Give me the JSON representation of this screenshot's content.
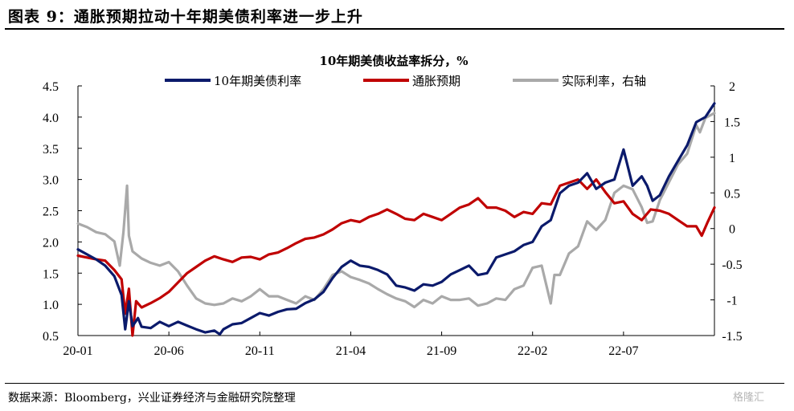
{
  "header": {
    "figure_title": "图表 9：通胀预期拉动十年期美债利率进一步上升"
  },
  "footer": {
    "source": "数据来源：Bloomberg，兴业证券经济与金融研究院整理",
    "watermark": "格隆汇"
  },
  "chart_data": {
    "type": "line",
    "title": "10年期美债收益率拆分，%",
    "x_tick_labels": [
      "20-01",
      "20-06",
      "20-11",
      "21-04",
      "21-09",
      "22-02",
      "22-07"
    ],
    "x_tick_months": [
      0,
      5,
      10,
      15,
      20,
      25,
      30
    ],
    "x_range_months": [
      0,
      35
    ],
    "y_left": {
      "range": [
        0.5,
        4.5
      ],
      "ticks": [
        0.5,
        1.0,
        1.5,
        2.0,
        2.5,
        3.0,
        3.5,
        4.0,
        4.5
      ],
      "tick_labels": [
        "0.5",
        "1.0",
        "1.5",
        "2.0",
        "2.5",
        "3.0",
        "3.5",
        "4.0",
        "4.5"
      ]
    },
    "y_right": {
      "range": [
        -1.5,
        2
      ],
      "ticks": [
        -1.5,
        -1,
        -0.5,
        0,
        0.5,
        1,
        1.5,
        2
      ],
      "tick_labels": [
        "-1.5",
        "-1",
        "-0.5",
        "0",
        "0.5",
        "1",
        "1.5",
        "2"
      ]
    },
    "legend_position": "top",
    "grid": false,
    "series": [
      {
        "name": "10年期美债利率",
        "axis": "left",
        "color": "#0b1a6b",
        "points": [
          [
            0,
            1.88
          ],
          [
            0.5,
            1.8
          ],
          [
            1,
            1.72
          ],
          [
            1.5,
            1.62
          ],
          [
            2,
            1.45
          ],
          [
            2.4,
            1.15
          ],
          [
            2.6,
            0.6
          ],
          [
            2.8,
            1.05
          ],
          [
            3,
            0.65
          ],
          [
            3.3,
            0.78
          ],
          [
            3.5,
            0.64
          ],
          [
            4,
            0.62
          ],
          [
            4.5,
            0.72
          ],
          [
            5,
            0.65
          ],
          [
            5.5,
            0.72
          ],
          [
            6,
            0.66
          ],
          [
            6.5,
            0.6
          ],
          [
            7,
            0.55
          ],
          [
            7.5,
            0.58
          ],
          [
            7.8,
            0.52
          ],
          [
            8,
            0.6
          ],
          [
            8.5,
            0.68
          ],
          [
            9,
            0.7
          ],
          [
            9.5,
            0.78
          ],
          [
            10,
            0.86
          ],
          [
            10.5,
            0.82
          ],
          [
            11,
            0.88
          ],
          [
            11.5,
            0.92
          ],
          [
            12,
            0.93
          ],
          [
            12.5,
            1.02
          ],
          [
            13,
            1.08
          ],
          [
            13.5,
            1.2
          ],
          [
            14,
            1.42
          ],
          [
            14.5,
            1.6
          ],
          [
            15,
            1.7
          ],
          [
            15.5,
            1.62
          ],
          [
            16,
            1.6
          ],
          [
            16.5,
            1.55
          ],
          [
            17,
            1.48
          ],
          [
            17.5,
            1.3
          ],
          [
            18,
            1.27
          ],
          [
            18.5,
            1.22
          ],
          [
            19,
            1.32
          ],
          [
            19.5,
            1.3
          ],
          [
            20,
            1.36
          ],
          [
            20.5,
            1.48
          ],
          [
            21,
            1.55
          ],
          [
            21.5,
            1.62
          ],
          [
            22,
            1.47
          ],
          [
            22.5,
            1.5
          ],
          [
            23,
            1.75
          ],
          [
            23.5,
            1.8
          ],
          [
            24,
            1.85
          ],
          [
            24.5,
            1.95
          ],
          [
            25,
            2.0
          ],
          [
            25.5,
            2.25
          ],
          [
            26,
            2.35
          ],
          [
            26.5,
            2.78
          ],
          [
            27,
            2.9
          ],
          [
            27.5,
            2.95
          ],
          [
            28,
            3.1
          ],
          [
            28.5,
            2.85
          ],
          [
            29,
            2.95
          ],
          [
            29.5,
            3.0
          ],
          [
            30,
            3.48
          ],
          [
            30.5,
            2.9
          ],
          [
            31,
            3.05
          ],
          [
            31.3,
            2.9
          ],
          [
            31.6,
            2.66
          ],
          [
            32,
            2.75
          ],
          [
            32.5,
            3.05
          ],
          [
            33,
            3.3
          ],
          [
            33.5,
            3.55
          ],
          [
            34,
            3.92
          ],
          [
            34.5,
            4.0
          ],
          [
            35,
            4.22
          ]
        ]
      },
      {
        "name": "通胀预期",
        "axis": "left",
        "color": "#c00000",
        "points": [
          [
            0,
            1.78
          ],
          [
            0.5,
            1.75
          ],
          [
            1,
            1.72
          ],
          [
            1.5,
            1.7
          ],
          [
            2,
            1.55
          ],
          [
            2.4,
            1.4
          ],
          [
            2.6,
            0.85
          ],
          [
            2.8,
            1.25
          ],
          [
            3,
            0.5
          ],
          [
            3.2,
            1.05
          ],
          [
            3.5,
            0.95
          ],
          [
            4,
            1.02
          ],
          [
            4.5,
            1.1
          ],
          [
            5,
            1.2
          ],
          [
            5.5,
            1.35
          ],
          [
            6,
            1.5
          ],
          [
            6.5,
            1.6
          ],
          [
            7,
            1.7
          ],
          [
            7.5,
            1.77
          ],
          [
            8,
            1.72
          ],
          [
            8.5,
            1.68
          ],
          [
            9,
            1.75
          ],
          [
            9.5,
            1.76
          ],
          [
            10,
            1.72
          ],
          [
            10.5,
            1.8
          ],
          [
            11,
            1.83
          ],
          [
            11.5,
            1.9
          ],
          [
            12,
            1.98
          ],
          [
            12.5,
            2.05
          ],
          [
            13,
            2.07
          ],
          [
            13.5,
            2.12
          ],
          [
            14,
            2.2
          ],
          [
            14.5,
            2.3
          ],
          [
            15,
            2.35
          ],
          [
            15.5,
            2.32
          ],
          [
            16,
            2.4
          ],
          [
            16.5,
            2.45
          ],
          [
            17,
            2.52
          ],
          [
            17.5,
            2.45
          ],
          [
            18,
            2.37
          ],
          [
            18.5,
            2.35
          ],
          [
            19,
            2.45
          ],
          [
            19.5,
            2.4
          ],
          [
            20,
            2.35
          ],
          [
            20.5,
            2.45
          ],
          [
            21,
            2.55
          ],
          [
            21.5,
            2.6
          ],
          [
            22,
            2.7
          ],
          [
            22.5,
            2.55
          ],
          [
            23,
            2.55
          ],
          [
            23.5,
            2.5
          ],
          [
            24,
            2.4
          ],
          [
            24.5,
            2.48
          ],
          [
            25,
            2.45
          ],
          [
            25.5,
            2.62
          ],
          [
            26,
            2.6
          ],
          [
            26.5,
            2.9
          ],
          [
            27,
            2.95
          ],
          [
            27.5,
            3.0
          ],
          [
            28,
            2.85
          ],
          [
            28.5,
            3.0
          ],
          [
            29,
            2.8
          ],
          [
            29.5,
            2.62
          ],
          [
            30,
            2.65
          ],
          [
            30.5,
            2.45
          ],
          [
            31,
            2.35
          ],
          [
            31.5,
            2.52
          ],
          [
            32,
            2.5
          ],
          [
            32.5,
            2.45
          ],
          [
            33,
            2.35
          ],
          [
            33.5,
            2.25
          ],
          [
            34,
            2.25
          ],
          [
            34.3,
            2.1
          ],
          [
            34.6,
            2.3
          ],
          [
            35,
            2.55
          ]
        ]
      },
      {
        "name": "实际利率，右轴",
        "axis": "right",
        "color": "#a9a9a9",
        "points": [
          [
            0,
            0.07
          ],
          [
            0.5,
            0.02
          ],
          [
            1,
            -0.05
          ],
          [
            1.5,
            -0.08
          ],
          [
            2,
            -0.18
          ],
          [
            2.3,
            -0.52
          ],
          [
            2.5,
            -0.05
          ],
          [
            2.7,
            0.6
          ],
          [
            2.8,
            -0.1
          ],
          [
            3,
            -0.32
          ],
          [
            3.5,
            -0.42
          ],
          [
            4,
            -0.48
          ],
          [
            4.5,
            -0.52
          ],
          [
            5,
            -0.47
          ],
          [
            5.5,
            -0.6
          ],
          [
            6,
            -0.8
          ],
          [
            6.5,
            -0.98
          ],
          [
            7,
            -1.05
          ],
          [
            7.5,
            -1.07
          ],
          [
            8,
            -1.05
          ],
          [
            8.5,
            -0.98
          ],
          [
            9,
            -1.02
          ],
          [
            9.5,
            -0.95
          ],
          [
            10,
            -0.85
          ],
          [
            10.5,
            -0.95
          ],
          [
            11,
            -0.95
          ],
          [
            11.5,
            -1.0
          ],
          [
            12,
            -1.05
          ],
          [
            12.5,
            -0.95
          ],
          [
            13,
            -1.0
          ],
          [
            13.5,
            -0.85
          ],
          [
            14,
            -0.65
          ],
          [
            14.5,
            -0.6
          ],
          [
            15,
            -0.68
          ],
          [
            15.5,
            -0.72
          ],
          [
            16,
            -0.77
          ],
          [
            16.5,
            -0.85
          ],
          [
            17,
            -0.92
          ],
          [
            17.5,
            -0.98
          ],
          [
            18,
            -1.02
          ],
          [
            18.5,
            -1.1
          ],
          [
            19,
            -1.0
          ],
          [
            19.5,
            -1.05
          ],
          [
            20,
            -0.95
          ],
          [
            20.5,
            -1.0
          ],
          [
            21,
            -1.0
          ],
          [
            21.5,
            -0.98
          ],
          [
            22,
            -1.08
          ],
          [
            22.5,
            -1.05
          ],
          [
            23,
            -0.98
          ],
          [
            23.5,
            -1.0
          ],
          [
            24,
            -0.85
          ],
          [
            24.5,
            -0.8
          ],
          [
            25,
            -0.55
          ],
          [
            25.5,
            -0.52
          ],
          [
            26,
            -1.05
          ],
          [
            26.2,
            -0.65
          ],
          [
            26.5,
            -0.65
          ],
          [
            27,
            -0.35
          ],
          [
            27.5,
            -0.25
          ],
          [
            28,
            0.1
          ],
          [
            28.5,
            -0.02
          ],
          [
            29,
            0.12
          ],
          [
            29.5,
            0.5
          ],
          [
            30,
            0.6
          ],
          [
            30.5,
            0.55
          ],
          [
            31,
            0.3
          ],
          [
            31.3,
            0.08
          ],
          [
            31.6,
            0.1
          ],
          [
            32,
            0.4
          ],
          [
            32.5,
            0.65
          ],
          [
            33,
            0.9
          ],
          [
            33.5,
            1.05
          ],
          [
            34,
            1.45
          ],
          [
            34.2,
            1.35
          ],
          [
            34.5,
            1.55
          ],
          [
            35,
            1.62
          ]
        ]
      }
    ]
  }
}
